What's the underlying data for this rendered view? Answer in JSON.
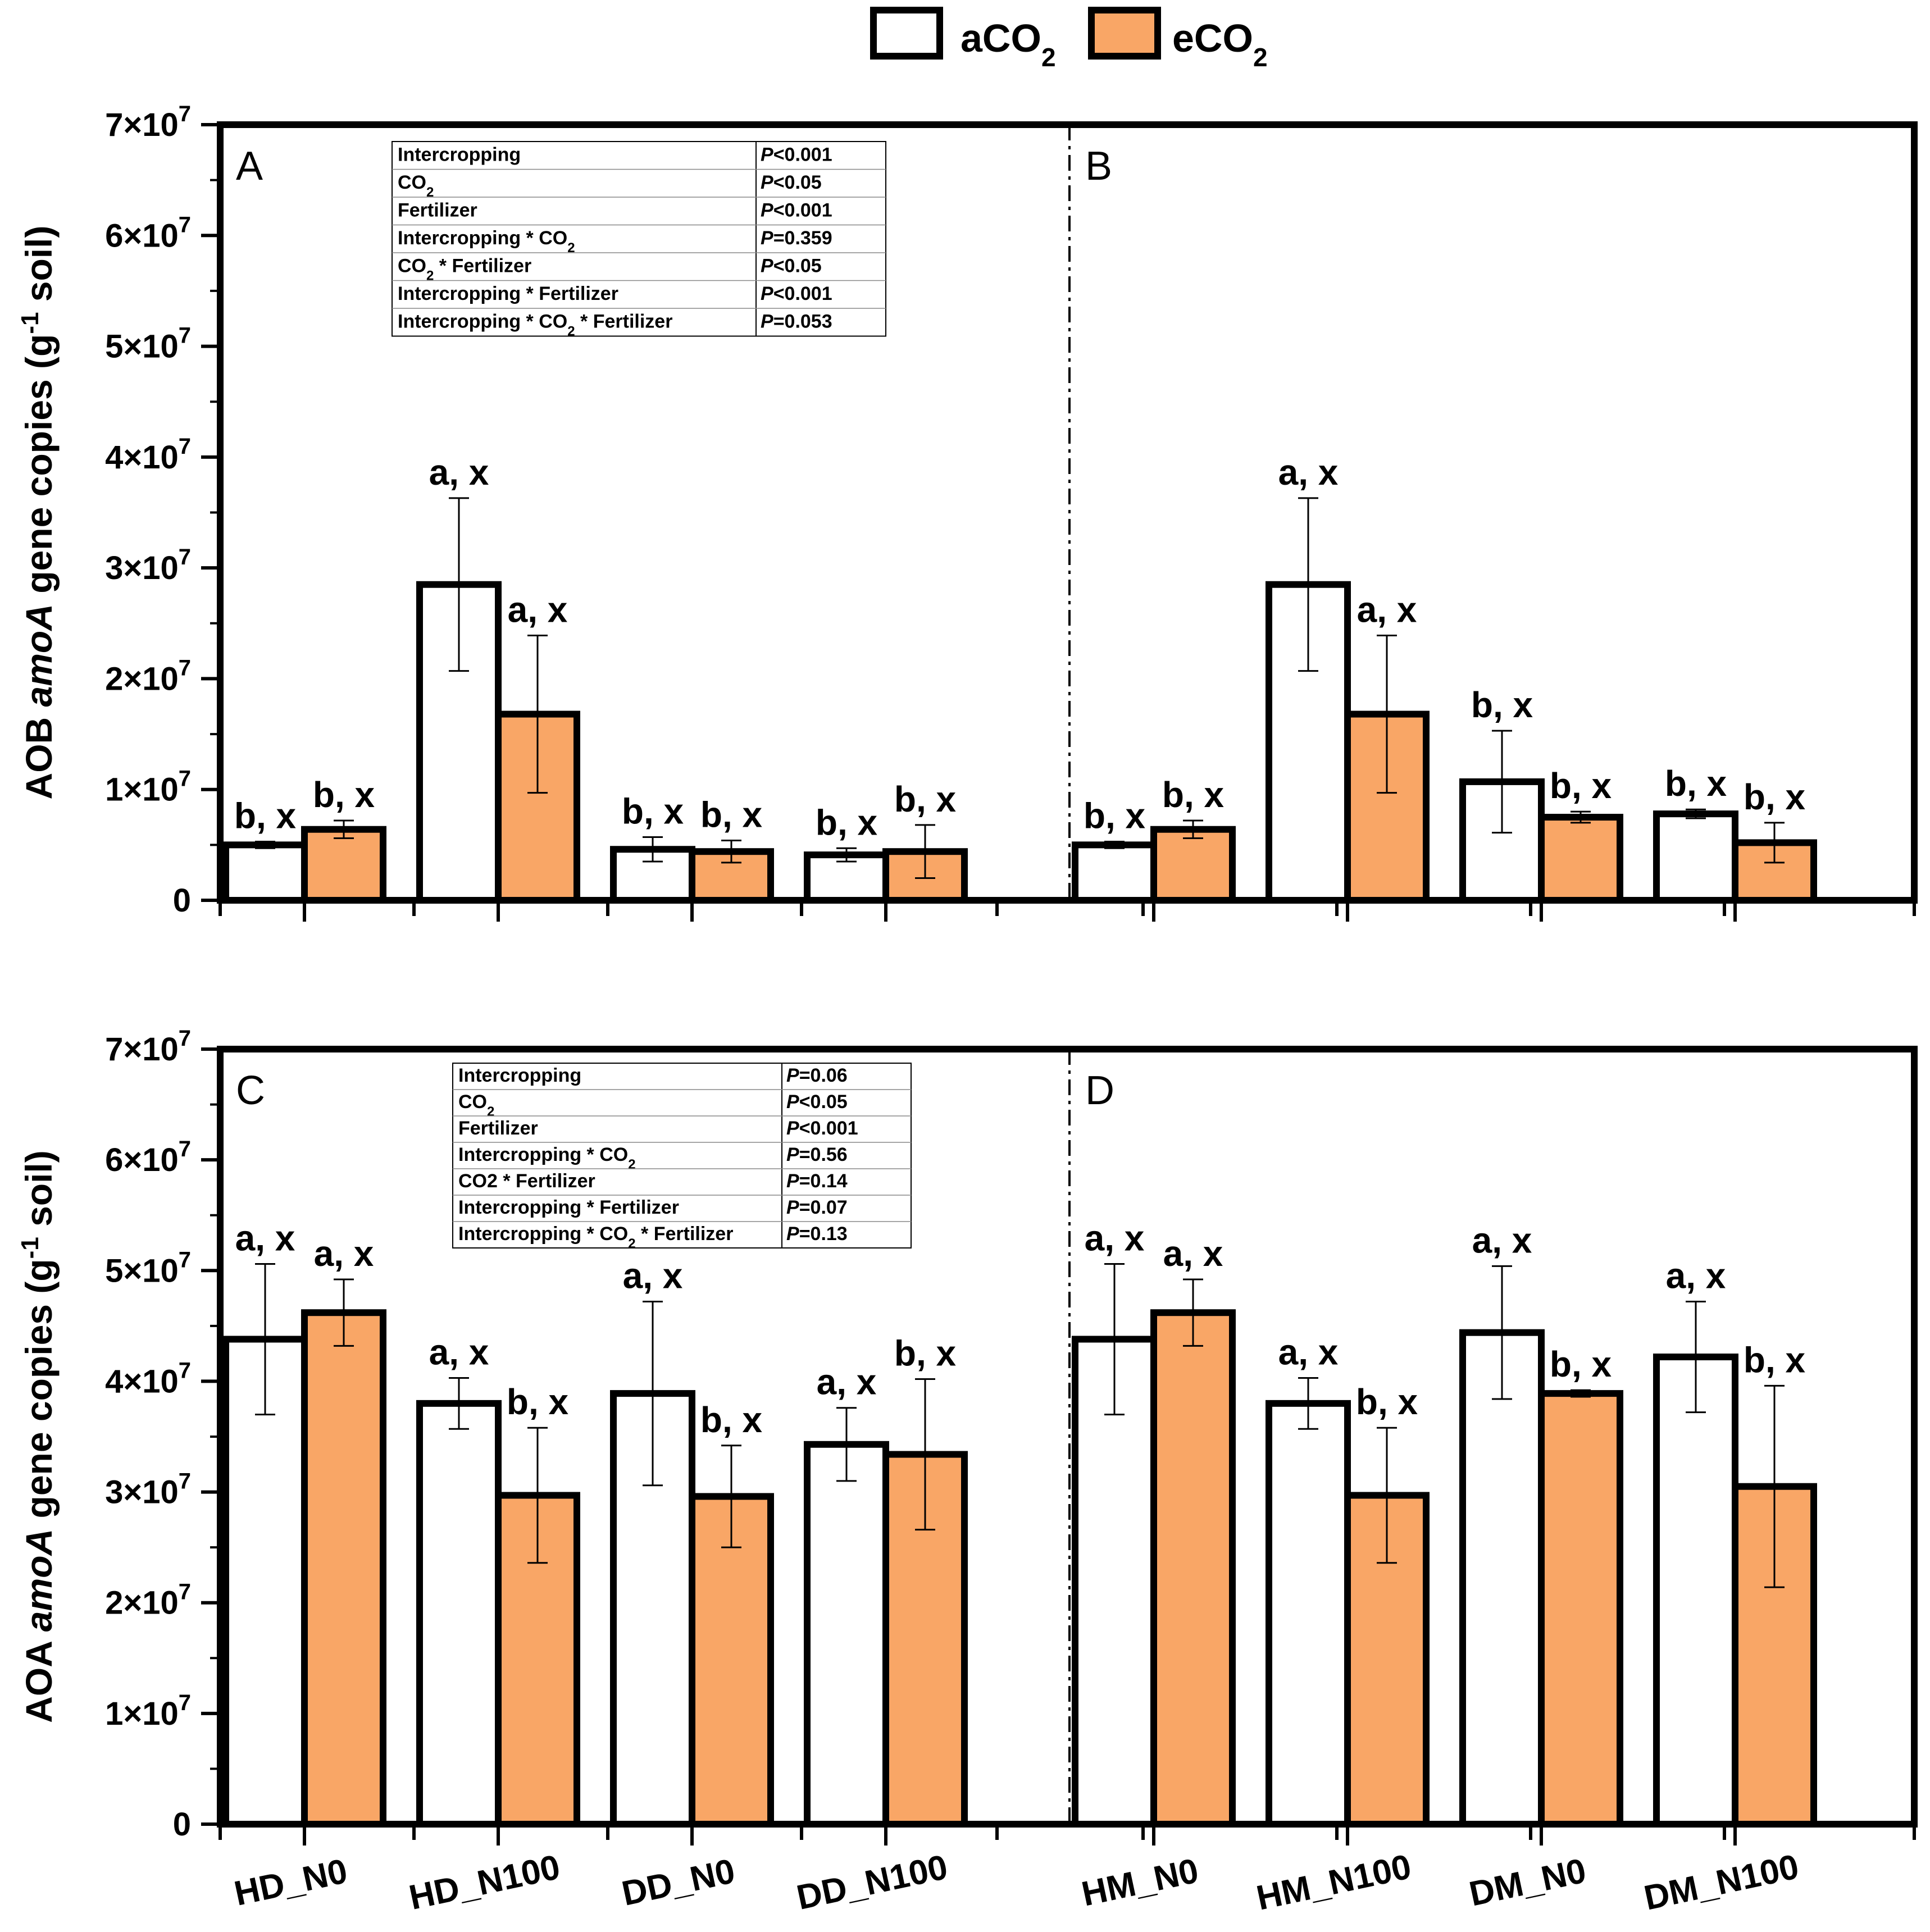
{
  "legend": {
    "items": [
      {
        "base": "aCO",
        "sub": "2",
        "color": "#ffffff"
      },
      {
        "base": "eCO",
        "sub": "2",
        "color": "#f9a666"
      }
    ]
  },
  "colors": {
    "aCO2": "#ffffff",
    "eCO2": "#f9a666",
    "axis": "#000000"
  },
  "categories_bottom": [
    "HD_N0",
    "HD_N100",
    "DD_N0",
    "DD_N100",
    "HM_N0",
    "HM_N100",
    "DM_N0",
    "DM_N100"
  ],
  "y_axis": {
    "ticks": [
      0,
      1,
      2,
      3,
      4,
      5,
      6,
      7
    ],
    "zero_label": "0",
    "mantissa_suffix": "×10",
    "exponent": "7"
  },
  "chart_data": [
    {
      "type": "bar",
      "id": "top",
      "ylabel_parts": [
        "AOB ",
        "amoA",
        " gene copies (g",
        "-1",
        " soil)"
      ],
      "ylim": [
        0,
        70000000
      ],
      "panels": [
        {
          "letter": "A",
          "categories": [
            "HD_N0",
            "HD_N100",
            "DD_N0",
            "DD_N100"
          ],
          "series": [
            {
              "name": "aCO2",
              "values": [
                5000000,
                28500000,
                4600000,
                4100000
              ],
              "errors": [
                300000,
                7800000,
                1100000,
                600000
              ],
              "labels": [
                "b, x",
                "a, x",
                "b, x",
                "b, x"
              ]
            },
            {
              "name": "eCO2",
              "values": [
                6400000,
                16800000,
                4400000,
                4400000
              ],
              "errors": [
                800000,
                7100000,
                1000000,
                2400000
              ],
              "labels": [
                "b, x",
                "a, x",
                "b, x",
                "b, x"
              ]
            }
          ],
          "stats_table": [
            {
              "term": "Intercropping",
              "p": "P<0.001"
            },
            {
              "term": "CO₂",
              "p": "P<0.05"
            },
            {
              "term": "Fertilizer",
              "p": "P<0.001"
            },
            {
              "term": "Intercropping * CO₂",
              "p": "P=0.359"
            },
            {
              "term": "CO₂ * Fertilizer",
              "p": "P<0.05"
            },
            {
              "term": "Intercropping * Fertilizer",
              "p": "P<0.001"
            },
            {
              "term": "Intercropping * CO₂ * Fertilizer",
              "p": "P=0.053"
            }
          ]
        },
        {
          "letter": "B",
          "categories": [
            "HM_N0",
            "HM_N100",
            "DM_N0",
            "DM_N100"
          ],
          "series": [
            {
              "name": "aCO2",
              "values": [
                5000000,
                28500000,
                10700000,
                7800000
              ],
              "errors": [
                300000,
                7800000,
                4600000,
                400000
              ],
              "labels": [
                "b, x",
                "a, x",
                "b, x",
                "b, x"
              ]
            },
            {
              "name": "eCO2",
              "values": [
                6400000,
                16800000,
                7500000,
                5200000
              ],
              "errors": [
                800000,
                7100000,
                500000,
                1800000
              ],
              "labels": [
                "b, x",
                "a, x",
                "b, x",
                "b, x"
              ]
            }
          ]
        }
      ]
    },
    {
      "type": "bar",
      "id": "bottom",
      "ylabel_parts": [
        "AOA ",
        "amoA",
        " gene copies (g",
        "-1",
        " soil)"
      ],
      "ylim": [
        0,
        70000000
      ],
      "panels": [
        {
          "letter": "C",
          "categories": [
            "HD_N0",
            "HD_N100",
            "DD_N0",
            "DD_N100"
          ],
          "series": [
            {
              "name": "aCO2",
              "values": [
                43800000,
                38000000,
                38900000,
                34300000
              ],
              "errors": [
                6800000,
                2300000,
                8300000,
                3300000
              ],
              "labels": [
                "a, x",
                "a, x",
                "a, x",
                "a, x"
              ]
            },
            {
              "name": "eCO2",
              "values": [
                46200000,
                29700000,
                29600000,
                33400000
              ],
              "errors": [
                3000000,
                6100000,
                4600000,
                6800000
              ],
              "labels": [
                "a, x",
                "b, x",
                "b, x",
                "b, x"
              ]
            }
          ],
          "stats_table": [
            {
              "term": "Intercropping",
              "p": "P=0.06"
            },
            {
              "term": "CO₂",
              "p": "P<0.05"
            },
            {
              "term": "Fertilizer",
              "p": "P<0.001"
            },
            {
              "term": "Intercropping * CO₂",
              "p": "P=0.56"
            },
            {
              "term": "CO2 * Fertilizer",
              "p": "P=0.14"
            },
            {
              "term": "Intercropping * Fertilizer",
              "p": "P=0.07"
            },
            {
              "term": "Intercropping * CO₂ * Fertilizer",
              "p": "P=0.13"
            }
          ]
        },
        {
          "letter": "D",
          "categories": [
            "HM_N0",
            "HM_N100",
            "DM_N0",
            "DM_N100"
          ],
          "series": [
            {
              "name": "aCO2",
              "values": [
                43800000,
                38000000,
                44400000,
                42200000
              ],
              "errors": [
                6800000,
                2300000,
                6000000,
                5000000
              ],
              "labels": [
                "a, x",
                "a, x",
                "a, x",
                "a, x"
              ]
            },
            {
              "name": "eCO2",
              "values": [
                46200000,
                29700000,
                38900000,
                30500000
              ],
              "errors": [
                3000000,
                6100000,
                300000,
                9100000
              ],
              "labels": [
                "a, x",
                "b, x",
                "b, x",
                "b, x"
              ]
            }
          ]
        }
      ]
    }
  ]
}
